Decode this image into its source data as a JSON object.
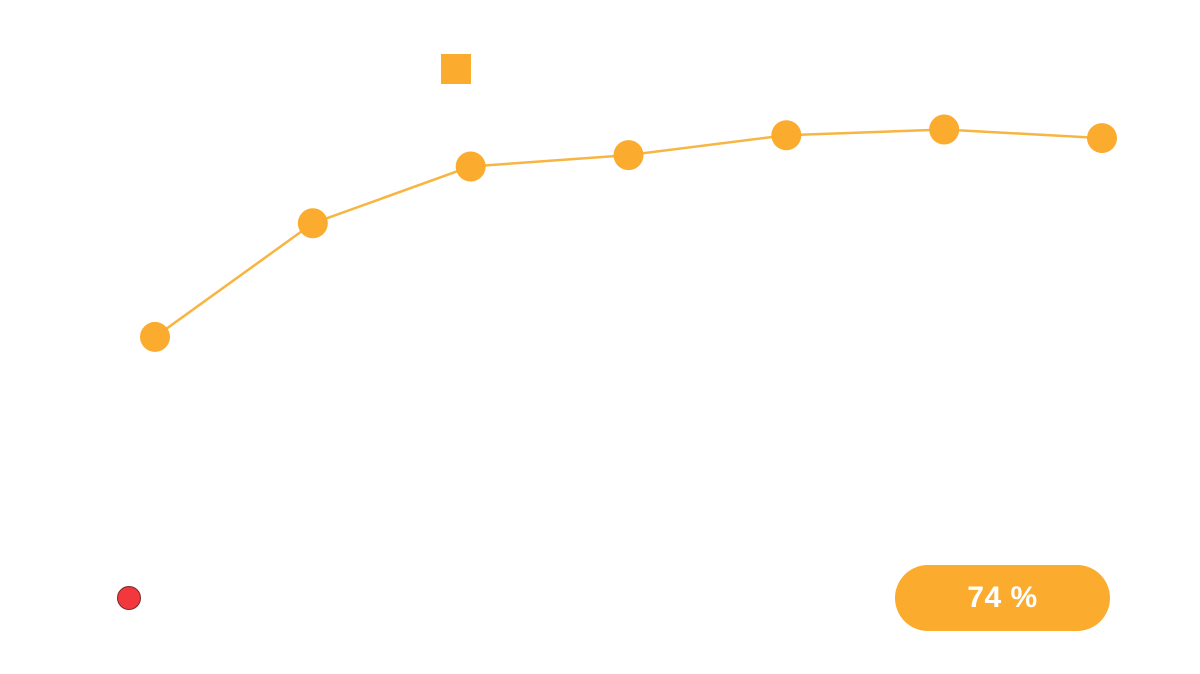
{
  "colors": {
    "series": "#fbab2d",
    "line": "#f7b541",
    "status_dot": "#f2373d",
    "badge_bg": "#fbab2d",
    "badge_text": "#ffffff"
  },
  "legend": {
    "icon": "square-icon"
  },
  "status": {
    "icon": "red-dot-icon"
  },
  "badge": {
    "label": "74 %"
  },
  "chart_data": {
    "type": "line",
    "x": [
      1,
      2,
      3,
      4,
      5,
      6,
      7
    ],
    "series": [
      {
        "values": [
          37.5,
          57.5,
          67.5,
          69.5,
          73,
          74,
          72.5
        ]
      }
    ],
    "xlim": [
      1,
      7
    ],
    "ylim": [
      0,
      88
    ],
    "grid": false,
    "axes_visible": false,
    "legend_position": "top"
  }
}
